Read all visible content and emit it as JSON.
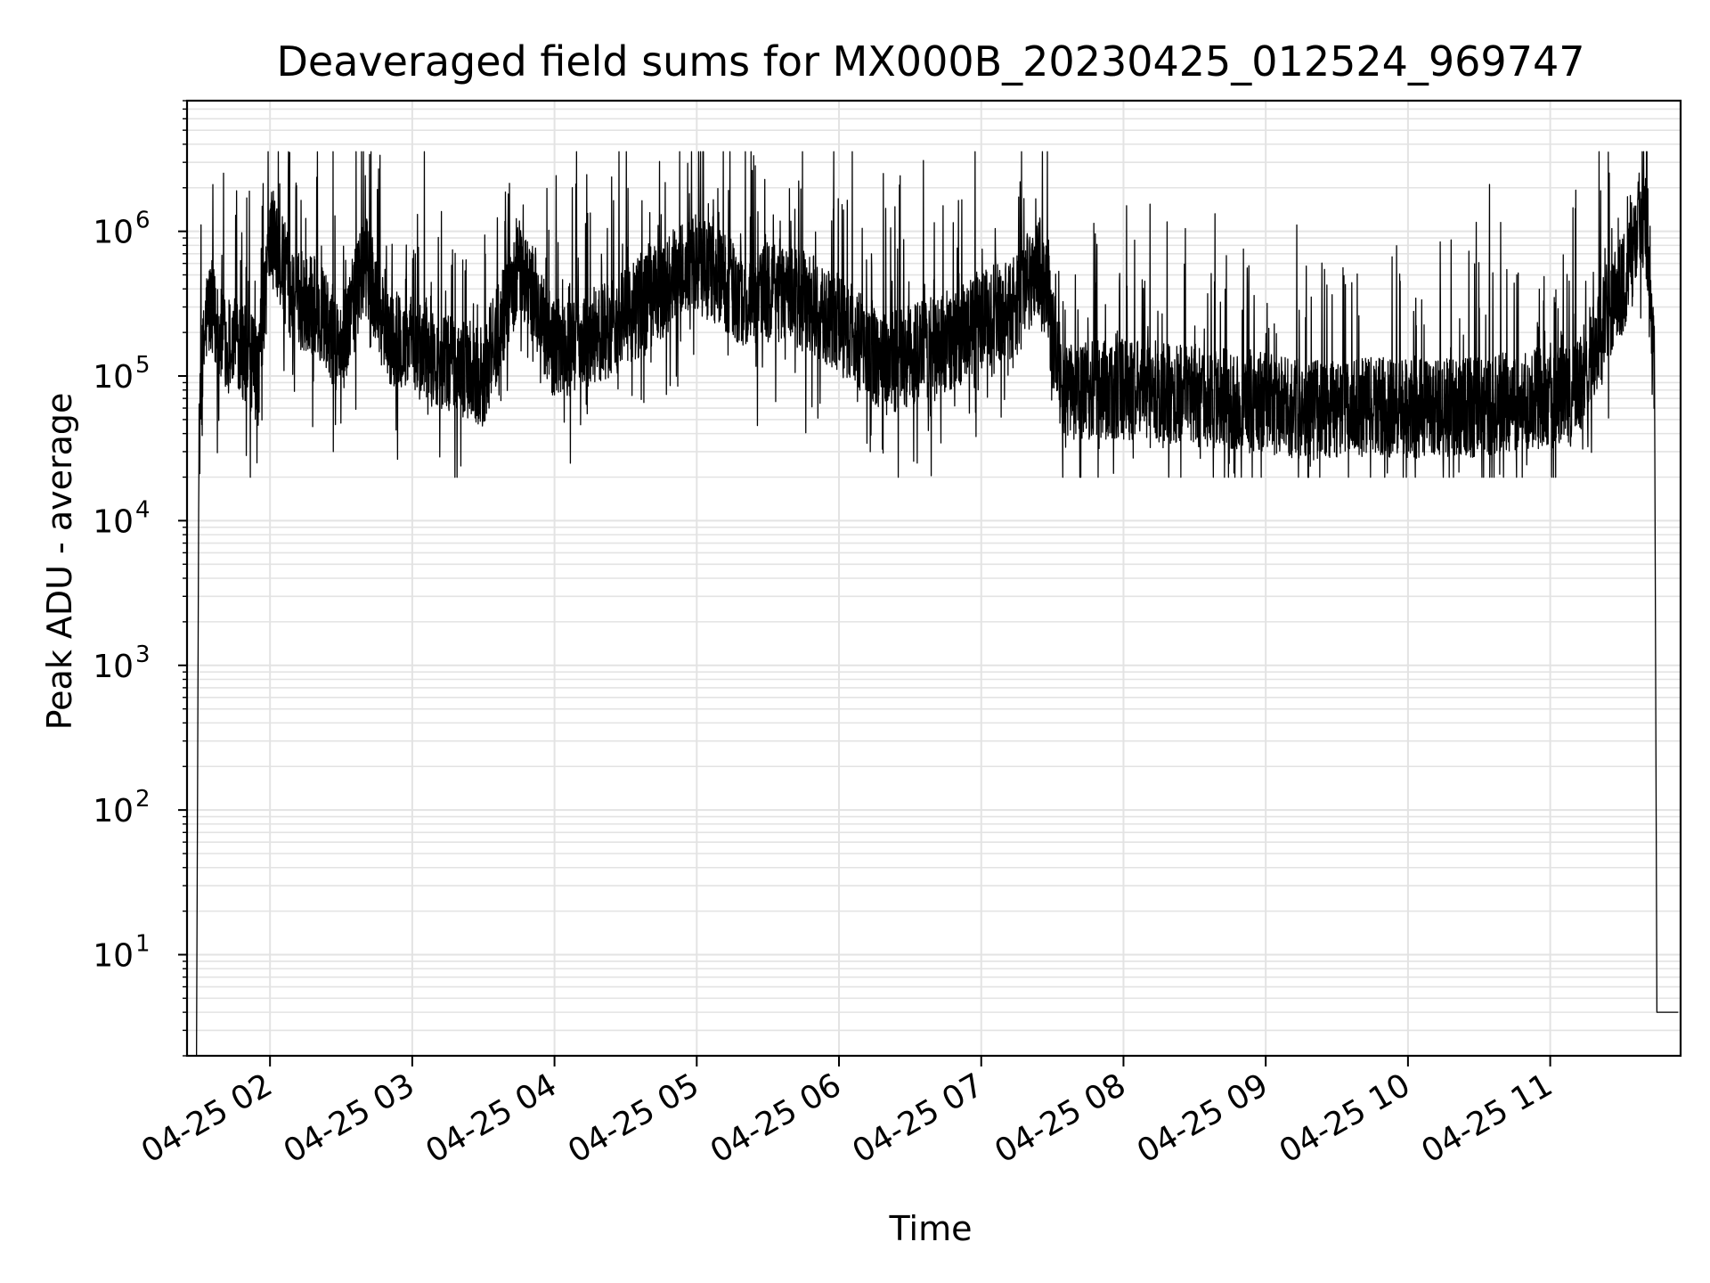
{
  "chart_data": {
    "type": "line",
    "title": "Deaveraged field sums for MX000B_20230425_012524_969747",
    "xlabel": "Time",
    "ylabel": "Peak ADU - average",
    "yscale": "log",
    "ylim": [
      2,
      8000000
    ],
    "xlim": [
      "2023-04-25T01:25",
      "2023-04-25T11:55"
    ],
    "x_ticks": [
      "04-25 02",
      "04-25 03",
      "04-25 04",
      "04-25 05",
      "04-25 06",
      "04-25 07",
      "04-25 08",
      "04-25 09",
      "04-25 10",
      "04-25 11"
    ],
    "y_tick_exponents": [
      "1",
      "2",
      "3",
      "4",
      "5",
      "6"
    ],
    "grid": true,
    "line_color": "#000000",
    "series": [
      {
        "x": [
          "2023-04-25T01:29",
          "2023-04-25T01:30",
          "2023-04-25T01:31",
          "2023-04-25T01:33",
          "2023-04-25T01:35",
          "2023-04-25T01:38",
          "2023-04-25T01:42",
          "2023-04-25T01:47",
          "2023-04-25T01:52",
          "2023-04-25T01:55",
          "2023-04-25T01:58",
          "2023-04-25T02:00",
          "2023-04-25T02:10",
          "2023-04-25T02:20",
          "2023-04-25T02:30",
          "2023-04-25T02:40",
          "2023-04-25T02:50",
          "2023-04-25T03:00",
          "2023-04-25T03:15",
          "2023-04-25T03:30",
          "2023-04-25T03:45",
          "2023-04-25T04:00",
          "2023-04-25T04:15",
          "2023-04-25T04:30",
          "2023-04-25T04:45",
          "2023-04-25T05:00",
          "2023-04-25T05:10",
          "2023-04-25T05:20",
          "2023-04-25T05:35",
          "2023-04-25T05:50",
          "2023-04-25T06:05",
          "2023-04-25T06:20",
          "2023-04-25T06:35",
          "2023-04-25T06:50",
          "2023-04-25T07:00",
          "2023-04-25T07:15",
          "2023-04-25T07:25",
          "2023-04-25T07:35",
          "2023-04-25T07:50",
          "2023-04-25T08:10",
          "2023-04-25T08:30",
          "2023-04-25T08:50",
          "2023-04-25T09:10",
          "2023-04-25T09:30",
          "2023-04-25T09:50",
          "2023-04-25T10:10",
          "2023-04-25T10:30",
          "2023-04-25T10:50",
          "2023-04-25T11:10",
          "2023-04-25T11:25",
          "2023-04-25T11:33",
          "2023-04-25T11:38",
          "2023-04-25T11:40",
          "2023-04-25T11:42",
          "2023-04-25T11:44",
          "2023-04-25T11:45",
          "2023-04-25T11:47",
          "2023-04-25T11:54"
        ],
        "y": [
          2,
          30000,
          80000,
          250000,
          300000,
          200000,
          150000,
          180000,
          120000,
          100000,
          400000,
          1000000,
          350000,
          300000,
          150000,
          600000,
          180000,
          160000,
          120000,
          100000,
          600000,
          150000,
          180000,
          250000,
          400000,
          600000,
          450000,
          350000,
          400000,
          300000,
          200000,
          120000,
          150000,
          180000,
          250000,
          300000,
          600000,
          70000,
          80000,
          80000,
          70000,
          70000,
          60000,
          60000,
          60000,
          60000,
          60000,
          70000,
          70000,
          300000,
          500000,
          1300000,
          1200000,
          600000,
          100000,
          4,
          4,
          4
        ]
      }
    ]
  }
}
